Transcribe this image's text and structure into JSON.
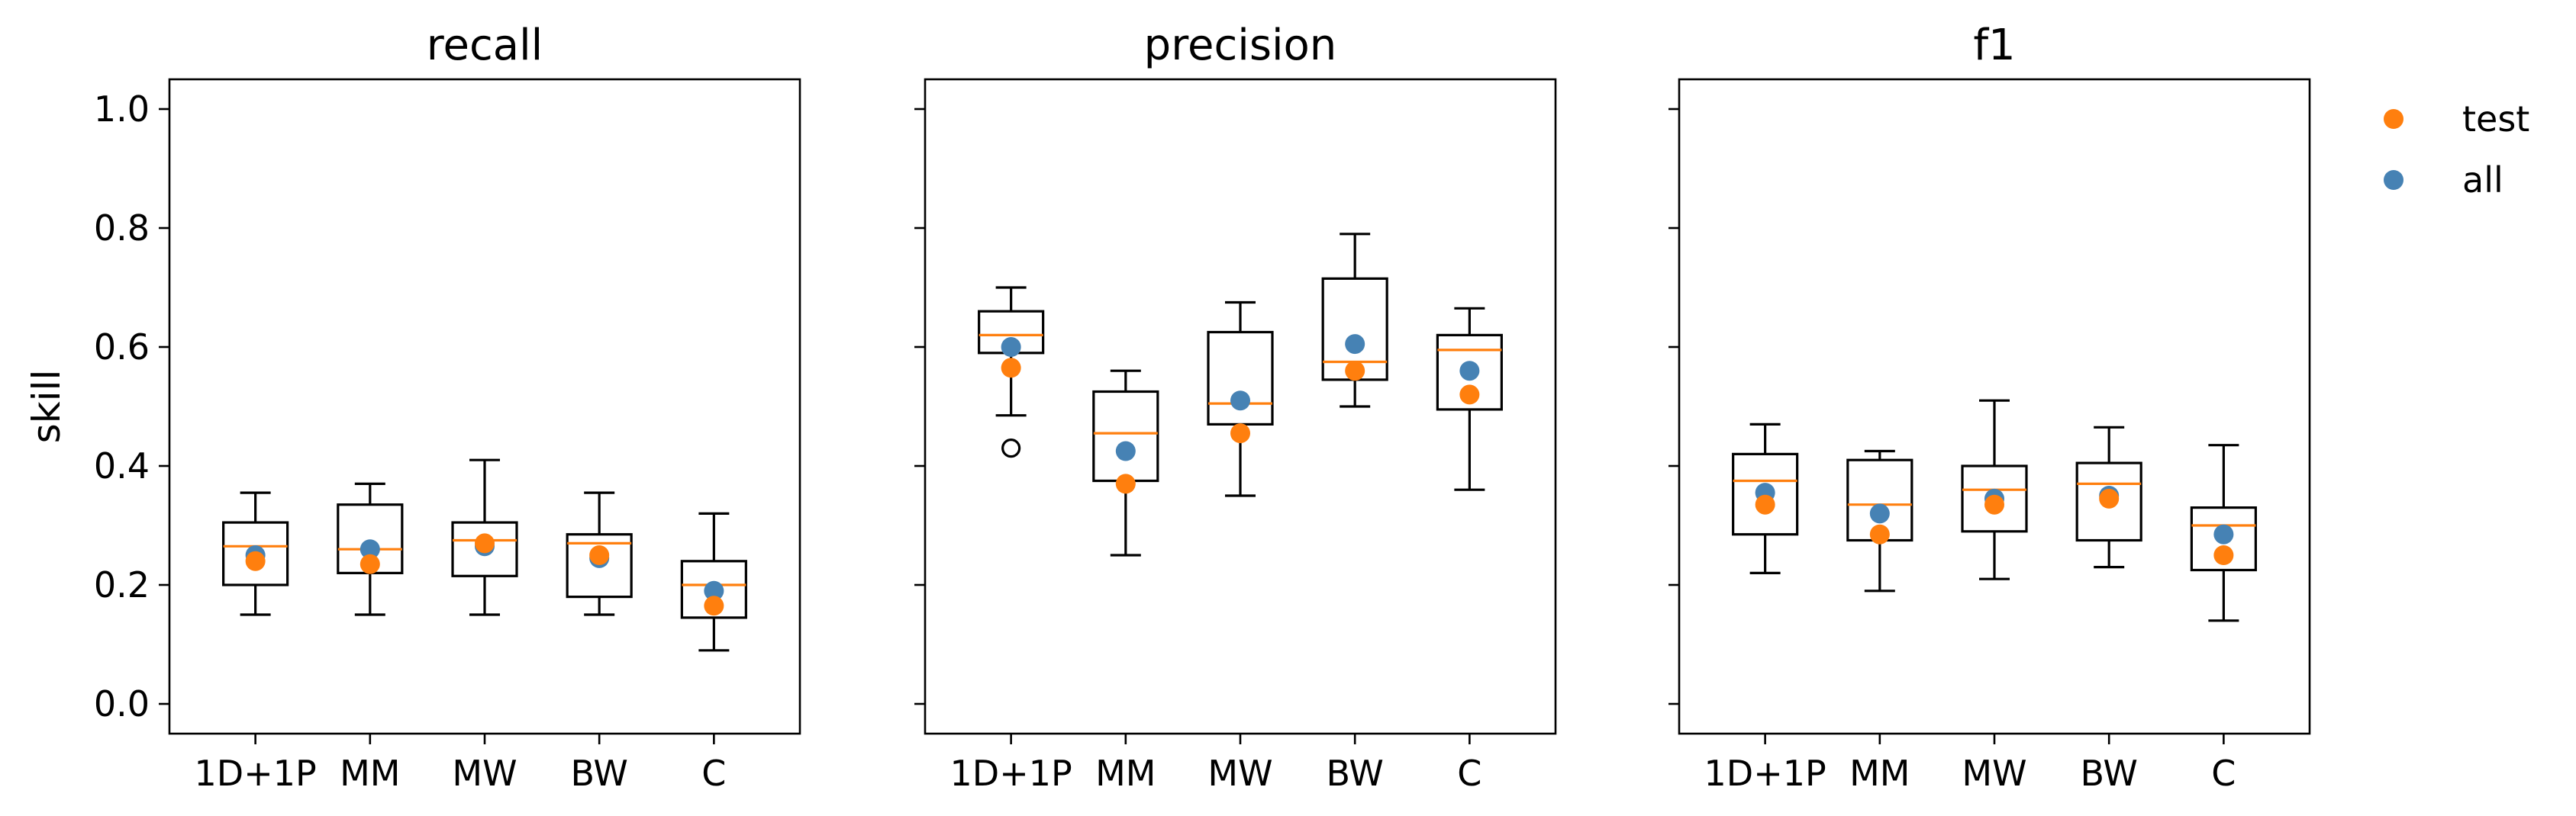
{
  "chart_data": [
    {
      "type": "box",
      "title": "recall",
      "ylabel": "skill",
      "ylim": [
        -0.05,
        1.05
      ],
      "yticks": [
        0.0,
        0.2,
        0.4,
        0.6,
        0.8,
        1.0
      ],
      "ytick_labels": [
        "0.0",
        "0.2",
        "0.4",
        "0.6",
        "0.8",
        "1.0"
      ],
      "categories": [
        "1D+1P",
        "MM",
        "MW",
        "BW",
        "C"
      ],
      "boxes": [
        {
          "whisker_low": 0.15,
          "q1": 0.2,
          "median": 0.265,
          "q3": 0.305,
          "whisker_high": 0.355,
          "fliers": []
        },
        {
          "whisker_low": 0.15,
          "q1": 0.22,
          "median": 0.26,
          "q3": 0.335,
          "whisker_high": 0.37,
          "fliers": []
        },
        {
          "whisker_low": 0.15,
          "q1": 0.215,
          "median": 0.275,
          "q3": 0.305,
          "whisker_high": 0.41,
          "fliers": []
        },
        {
          "whisker_low": 0.15,
          "q1": 0.18,
          "median": 0.27,
          "q3": 0.285,
          "whisker_high": 0.355,
          "fliers": []
        },
        {
          "whisker_low": 0.09,
          "q1": 0.145,
          "median": 0.2,
          "q3": 0.24,
          "whisker_high": 0.32,
          "fliers": []
        }
      ],
      "series": [
        {
          "name": "test",
          "values": [
            0.24,
            0.235,
            0.27,
            0.25,
            0.165
          ]
        },
        {
          "name": "all",
          "values": [
            0.25,
            0.26,
            0.265,
            0.245,
            0.19
          ]
        }
      ],
      "show_ytick_labels": true
    },
    {
      "type": "box",
      "title": "precision",
      "ylim": [
        -0.05,
        1.05
      ],
      "yticks": [
        0.0,
        0.2,
        0.4,
        0.6,
        0.8,
        1.0
      ],
      "categories": [
        "1D+1P",
        "MM",
        "MW",
        "BW",
        "C"
      ],
      "boxes": [
        {
          "whisker_low": 0.485,
          "q1": 0.59,
          "median": 0.62,
          "q3": 0.66,
          "whisker_high": 0.7,
          "fliers": [
            0.43
          ]
        },
        {
          "whisker_low": 0.25,
          "q1": 0.375,
          "median": 0.455,
          "q3": 0.525,
          "whisker_high": 0.56,
          "fliers": []
        },
        {
          "whisker_low": 0.35,
          "q1": 0.47,
          "median": 0.505,
          "q3": 0.625,
          "whisker_high": 0.675,
          "fliers": []
        },
        {
          "whisker_low": 0.5,
          "q1": 0.545,
          "median": 0.575,
          "q3": 0.715,
          "whisker_high": 0.79,
          "fliers": []
        },
        {
          "whisker_low": 0.36,
          "q1": 0.495,
          "median": 0.595,
          "q3": 0.62,
          "whisker_high": 0.665,
          "fliers": []
        }
      ],
      "series": [
        {
          "name": "test",
          "values": [
            0.565,
            0.37,
            0.455,
            0.56,
            0.52
          ]
        },
        {
          "name": "all",
          "values": [
            0.6,
            0.425,
            0.51,
            0.605,
            0.56
          ]
        }
      ],
      "show_ytick_labels": false
    },
    {
      "type": "box",
      "title": "f1",
      "ylim": [
        -0.05,
        1.05
      ],
      "yticks": [
        0.0,
        0.2,
        0.4,
        0.6,
        0.8,
        1.0
      ],
      "categories": [
        "1D+1P",
        "MM",
        "MW",
        "BW",
        "C"
      ],
      "boxes": [
        {
          "whisker_low": 0.22,
          "q1": 0.285,
          "median": 0.375,
          "q3": 0.42,
          "whisker_high": 0.47,
          "fliers": []
        },
        {
          "whisker_low": 0.19,
          "q1": 0.275,
          "median": 0.335,
          "q3": 0.41,
          "whisker_high": 0.425,
          "fliers": []
        },
        {
          "whisker_low": 0.21,
          "q1": 0.29,
          "median": 0.36,
          "q3": 0.4,
          "whisker_high": 0.51,
          "fliers": []
        },
        {
          "whisker_low": 0.23,
          "q1": 0.275,
          "median": 0.37,
          "q3": 0.405,
          "whisker_high": 0.465,
          "fliers": []
        },
        {
          "whisker_low": 0.14,
          "q1": 0.225,
          "median": 0.3,
          "q3": 0.33,
          "whisker_high": 0.435,
          "fliers": []
        }
      ],
      "series": [
        {
          "name": "test",
          "values": [
            0.335,
            0.285,
            0.335,
            0.345,
            0.25
          ]
        },
        {
          "name": "all",
          "values": [
            0.355,
            0.32,
            0.345,
            0.35,
            0.285
          ]
        }
      ],
      "show_ytick_labels": false
    }
  ],
  "legend": {
    "placement": "outside-top-right",
    "items": [
      {
        "label": "test",
        "color": "#ff7f0e"
      },
      {
        "label": "all",
        "color": "#4682b4"
      }
    ]
  },
  "colors": {
    "test": "#ff7f0e",
    "all": "#4682b4",
    "median": "#ff7f0e",
    "box": "#000000"
  }
}
